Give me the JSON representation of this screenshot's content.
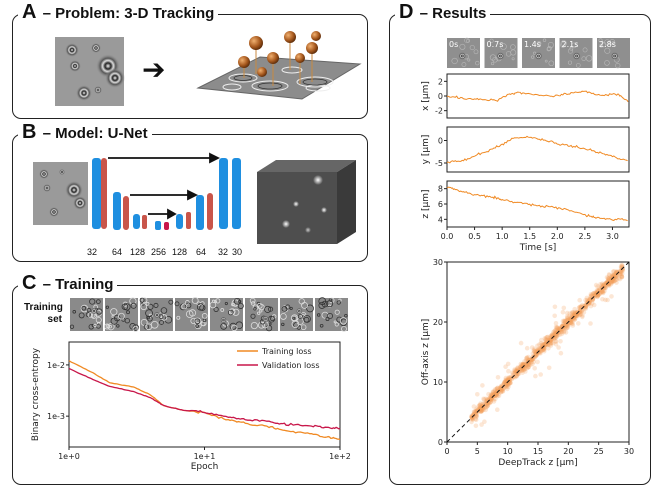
{
  "panels": {
    "a": {
      "letter": "A",
      "title": " – Problem: 3-D Tracking"
    },
    "b": {
      "letter": "B",
      "title": " – Model: U-Net"
    },
    "c": {
      "letter": "C",
      "title": " – Training"
    },
    "d": {
      "letter": "D",
      "title": " – Results"
    }
  },
  "unet": {
    "channel_labels": [
      "32",
      "64",
      "128",
      "256",
      "128",
      "64",
      "32",
      "30"
    ]
  },
  "training_set_label": [
    "Training",
    "set"
  ],
  "colors": {
    "orange": "#f08a24",
    "red": "#c8174a",
    "blue": "#1f8fe0",
    "salmon": "#c9554a",
    "bead": "#a85a1f"
  },
  "chart_data": [
    {
      "id": "loss",
      "type": "line",
      "xscale": "log",
      "yscale": "log",
      "xlabel": "Epoch",
      "ylabel": "Binary cross-entropy",
      "xticks": [
        "1e+0",
        "1e+1",
        "1e+2"
      ],
      "yticks": [
        "1e-2",
        "1e-3"
      ],
      "xlim": [
        1,
        100
      ],
      "ylim": [
        0.00025,
        0.028
      ],
      "legend_position": "top-right",
      "series": [
        {
          "name": "Training loss",
          "color": "#f08a24",
          "x": [
            1,
            1.5,
            2,
            3,
            4,
            5,
            7,
            10,
            15,
            20,
            30,
            40,
            60,
            80,
            100
          ],
          "y": [
            0.012,
            0.007,
            0.0045,
            0.0037,
            0.0026,
            0.0016,
            0.0013,
            0.00115,
            0.00085,
            0.00072,
            0.00062,
            0.00052,
            0.00045,
            0.00039,
            0.00035
          ]
        },
        {
          "name": "Validation loss",
          "color": "#c8174a",
          "x": [
            1,
            1.5,
            2,
            3,
            4,
            5,
            7,
            10,
            15,
            20,
            30,
            40,
            60,
            80,
            100
          ],
          "y": [
            0.0085,
            0.0052,
            0.0038,
            0.003,
            0.0023,
            0.0016,
            0.0013,
            0.0012,
            0.00095,
            0.00085,
            0.00078,
            0.00068,
            0.00065,
            0.0006,
            0.00058
          ]
        }
      ]
    },
    {
      "id": "x-trace",
      "type": "line",
      "ylabel": "x [µm]",
      "yticks": [
        "2",
        "0",
        "-2"
      ],
      "ylim": [
        -3,
        3
      ],
      "xlim": [
        0,
        3.3
      ],
      "series": [
        {
          "name": "x",
          "color": "#f08a24",
          "x": [
            0,
            0.3,
            0.6,
            0.9,
            1.1,
            1.3,
            1.6,
            1.9,
            2.2,
            2.5,
            2.8,
            3.1,
            3.3
          ],
          "y": [
            0.0,
            -0.3,
            -0.5,
            -0.6,
            0.2,
            0.5,
            0.2,
            -0.1,
            0.3,
            0.6,
            0.1,
            0.3,
            -0.8
          ]
        }
      ]
    },
    {
      "id": "y-trace",
      "type": "line",
      "ylabel": "y [µm]",
      "yticks": [
        "0",
        "-5"
      ],
      "ylim": [
        -7,
        3
      ],
      "xlim": [
        0,
        3.3
      ],
      "series": [
        {
          "name": "y",
          "color": "#f08a24",
          "x": [
            0,
            0.3,
            0.6,
            0.9,
            1.2,
            1.5,
            1.8,
            2.1,
            2.4,
            2.7,
            3.0,
            3.3
          ],
          "y": [
            -4.8,
            -4.5,
            -3.0,
            -1.5,
            0.5,
            0.8,
            0.0,
            -1.0,
            -1.5,
            -2.5,
            -3.5,
            -4.5
          ]
        }
      ]
    },
    {
      "id": "z-trace",
      "type": "line",
      "ylabel": "z [µm]",
      "yticks": [
        "8",
        "6",
        "4"
      ],
      "ylim": [
        3,
        9
      ],
      "xlim": [
        0,
        3.3
      ],
      "xlabel": "Time [s]",
      "xticks": [
        "0.0",
        "0.5",
        "1.0",
        "1.5",
        "2.0",
        "2.5",
        "3.0"
      ],
      "series": [
        {
          "name": "z",
          "color": "#f08a24",
          "x": [
            0,
            0.2,
            0.5,
            0.8,
            1.0,
            1.3,
            1.6,
            1.9,
            2.2,
            2.5,
            2.7,
            3.0,
            3.3
          ],
          "y": [
            8.2,
            7.8,
            7.2,
            7.0,
            6.5,
            6.2,
            5.8,
            5.6,
            5.2,
            4.6,
            4.2,
            4.0,
            3.9
          ]
        }
      ]
    },
    {
      "id": "scatter",
      "type": "scatter",
      "xlabel": "DeepTrack z [µm]",
      "ylabel": "Off-axis z [µm]",
      "xticks": [
        "0",
        "5",
        "10",
        "15",
        "20",
        "25",
        "30"
      ],
      "yticks": [
        "0",
        "10",
        "20",
        "30"
      ],
      "xlim": [
        0,
        30
      ],
      "ylim": [
        0,
        30
      ],
      "reference_line": "y = x (dashed)",
      "color": "#f5a05a",
      "n_points": 900,
      "range": [
        4,
        29
      ]
    }
  ],
  "time_labels": [
    "0s",
    "0.7s",
    "1.4s",
    "2.1s",
    "2.8s"
  ]
}
